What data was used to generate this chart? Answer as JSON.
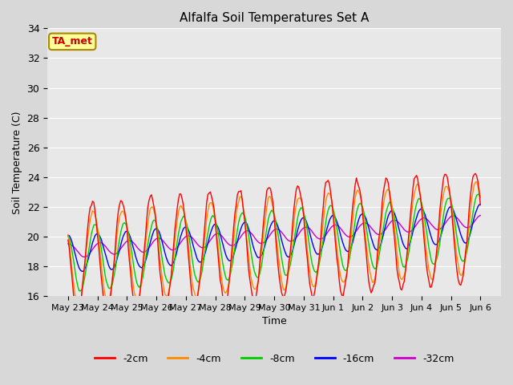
{
  "title": "Alfalfa Soil Temperatures Set A",
  "xlabel": "Time",
  "ylabel": "Soil Temperature (C)",
  "ylim": [
    16,
    34
  ],
  "yticks": [
    16,
    18,
    20,
    22,
    24,
    26,
    28,
    30,
    32,
    34
  ],
  "background_color": "#e8e8e8",
  "plot_bg_color": "#e8e8e8",
  "series_colors": {
    "-2cm": "#ff0000",
    "-4cm": "#ff8c00",
    "-8cm": "#00cc00",
    "-16cm": "#0000ff",
    "-32cm": "#cc00cc"
  },
  "legend_labels": [
    "-2cm",
    "-4cm",
    "-8cm",
    "-16cm",
    "-32cm"
  ],
  "ta_met_label": "TA_met",
  "ta_met_color": "#cc0000",
  "ta_met_bg": "#ffff99",
  "ta_met_border": "#aa8800"
}
